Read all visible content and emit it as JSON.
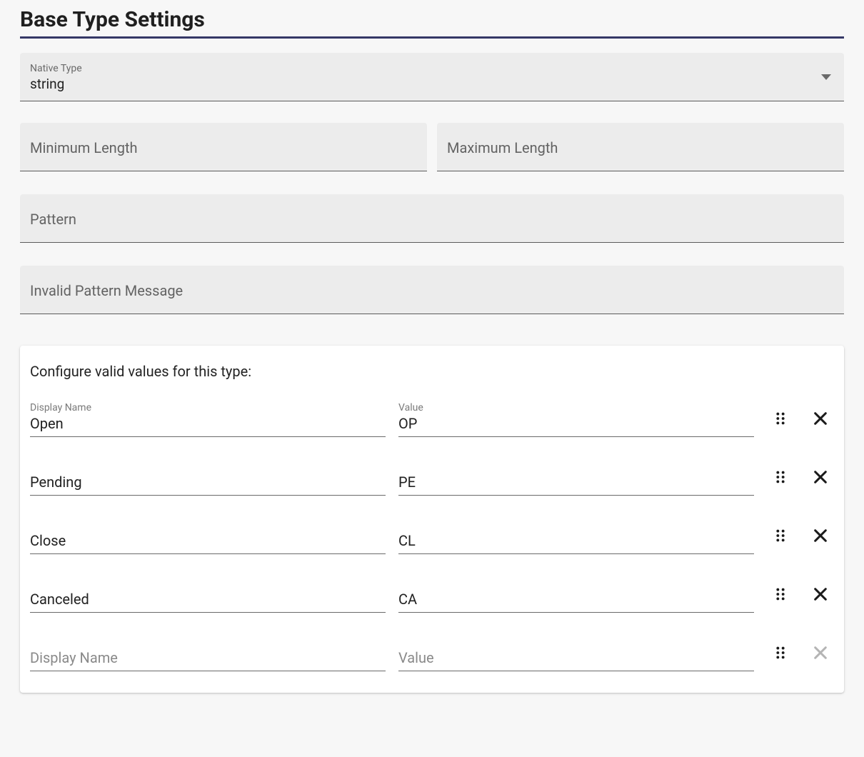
{
  "title": "Base Type Settings",
  "accent_color": "#353866",
  "field_bg": "#ececec",
  "native_type": {
    "label": "Native Type",
    "value": "string"
  },
  "min_length": {
    "label": "Minimum Length",
    "value": ""
  },
  "max_length": {
    "label": "Maximum Length",
    "value": ""
  },
  "pattern": {
    "label": "Pattern",
    "value": ""
  },
  "invalid_pattern_msg": {
    "label": "Invalid Pattern Message",
    "value": ""
  },
  "valid_values": {
    "heading": "Configure valid values for this type:",
    "display_name_label": "Display Name",
    "value_label": "Value",
    "rows": [
      {
        "display_name": "Open",
        "value": "OP",
        "deletable": true
      },
      {
        "display_name": "Pending",
        "value": "PE",
        "deletable": true
      },
      {
        "display_name": "Close",
        "value": "CL",
        "deletable": true
      },
      {
        "display_name": "Canceled",
        "value": "CA",
        "deletable": true
      },
      {
        "display_name": "",
        "value": "",
        "deletable": false
      }
    ]
  }
}
